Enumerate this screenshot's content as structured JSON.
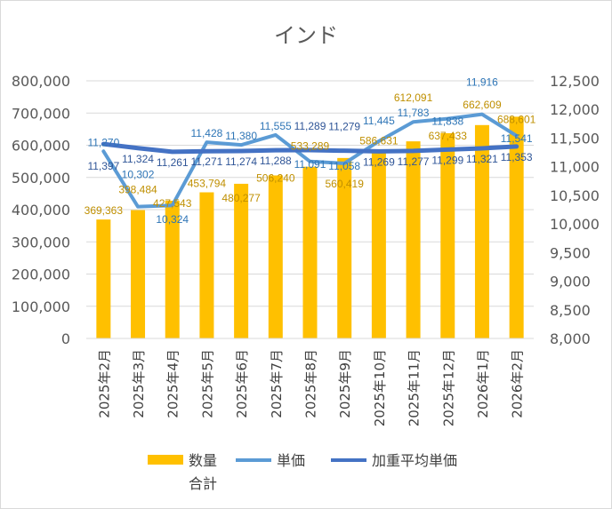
{
  "chart_data": {
    "type": "bar+line",
    "title": "インド",
    "categories": [
      "2025年2月",
      "2025年3月",
      "2025年4月",
      "2025年5月",
      "2025年6月",
      "2025年7月",
      "2025年8月",
      "2025年9月",
      "2025年10月",
      "2025年11月",
      "2025年12月",
      "2026年1月",
      "2026年2月"
    ],
    "left_axis": {
      "min": 0,
      "max": 800000,
      "step": 100000
    },
    "right_axis": {
      "min": 8000,
      "max": 12500,
      "step": 500
    },
    "gridlines": true,
    "legend_position": "bottom",
    "series": [
      {
        "name": "数量\n合計",
        "legend_lines": [
          "数量",
          "合計"
        ],
        "type": "bar",
        "axis": "left",
        "color": "#FFC000",
        "label_color": "#BF8F00",
        "values": [
          369363,
          398484,
          427543,
          453794,
          480277,
          506240,
          533289,
          560419,
          586631,
          612091,
          637433,
          662609,
          688601
        ]
      },
      {
        "name": "単価",
        "type": "line",
        "axis": "right",
        "color": "#5B9BD5",
        "label_color": "#2E75B6",
        "values": [
          11270,
          10302,
          10324,
          11428,
          11380,
          11555,
          11091,
          11058,
          11445,
          11783,
          11838,
          11916,
          11541
        ]
      },
      {
        "name": "加重平均単価",
        "type": "line",
        "axis": "right",
        "color": "#4472C4",
        "label_color": "#2F5597",
        "values": [
          11397,
          11324,
          11261,
          11271,
          11274,
          11288,
          11289,
          11279,
          11269,
          11277,
          11299,
          11321,
          11353
        ]
      }
    ]
  }
}
